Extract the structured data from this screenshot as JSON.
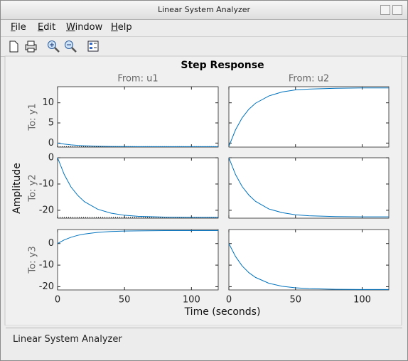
{
  "window": {
    "title": "Linear System Analyzer",
    "menu": [
      "File",
      "Edit",
      "Window",
      "Help"
    ],
    "status": "Linear System Analyzer"
  },
  "chart_data": {
    "type": "line",
    "title": "Step Response",
    "xlabel": "Time (seconds)",
    "ylabel": "Amplitude",
    "col_titles": [
      "From: u1",
      "From: u2"
    ],
    "row_titles": [
      "To: y1",
      "To: y2",
      "To: y3"
    ],
    "color": "#0072bd",
    "xlim": [
      0,
      120
    ],
    "xticks": [
      0,
      50,
      100
    ],
    "x": [
      0,
      5,
      10,
      15,
      20,
      30,
      40,
      50,
      60,
      80,
      100,
      120
    ],
    "rows": [
      {
        "ylim": [
          -1,
          14
        ],
        "yticks": [
          0,
          5,
          10
        ],
        "panels": [
          {
            "values": [
              0,
              -0.25,
              -0.44,
              -0.57,
              -0.66,
              -0.78,
              -0.84,
              -0.87,
              -0.88,
              -0.9,
              -0.9,
              -0.9
            ],
            "steady": -0.9
          },
          {
            "values": [
              -0.8,
              3.3,
              6.3,
              8.4,
              9.9,
              11.7,
              12.7,
              13.2,
              13.4,
              13.6,
              13.7,
              13.7
            ]
          }
        ]
      },
      {
        "ylim": [
          -23,
          0
        ],
        "yticks": [
          -20,
          -10,
          0
        ],
        "panels": [
          {
            "values": [
              0,
              -6.4,
              -11.1,
              -14.3,
              -16.7,
              -19.6,
              -21.1,
              -21.9,
              -22.3,
              -22.6,
              -22.7,
              -22.7
            ],
            "steady": -22.7
          },
          {
            "values": [
              0,
              -6.4,
              -11,
              -14.2,
              -16.6,
              -19.5,
              -20.9,
              -21.7,
              -22.1,
              -22.4,
              -22.5,
              -22.5
            ]
          }
        ]
      },
      {
        "ylim": [
          -21.5,
          6.5
        ],
        "yticks": [
          -20,
          -10,
          0
        ],
        "panels": [
          {
            "values": [
              0,
              1.7,
              2.9,
              3.8,
              4.4,
              5.2,
              5.6,
              5.8,
              5.9,
              6,
              6,
              6
            ]
          },
          {
            "values": [
              0,
              -6,
              -10.4,
              -13.5,
              -15.7,
              -18.4,
              -19.8,
              -20.5,
              -20.9,
              -21.2,
              -21.3,
              -21.3
            ]
          }
        ]
      }
    ]
  }
}
